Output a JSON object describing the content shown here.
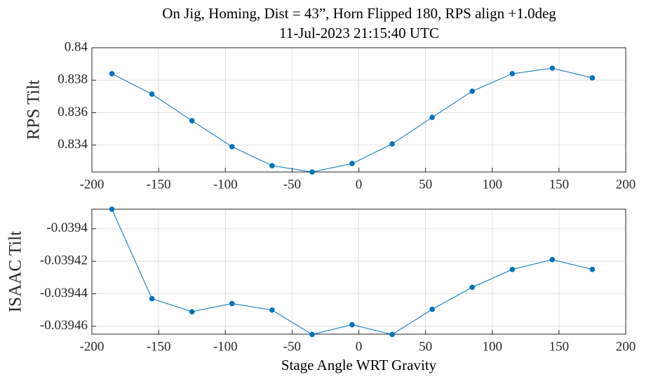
{
  "chart_data": [
    {
      "type": "line",
      "title": "On Jig, Homing, Dist = 43”, Horn Flipped 180, RPS align +1.0deg",
      "subtitle": "11-Jul-2023 21:15:40 UTC",
      "ylabel": "RPS Tilt",
      "x": [
        -185,
        -155,
        -125,
        -95,
        -65,
        -35,
        -5,
        25,
        55,
        85,
        115,
        145,
        175
      ],
      "series": [
        {
          "color": "#0072bd",
          "values": [
            0.8384,
            0.83714,
            0.8355,
            0.8339,
            0.83273,
            0.83234,
            0.83286,
            0.83407,
            0.83571,
            0.83732,
            0.8384,
            0.83874,
            0.83814
          ]
        }
      ],
      "xlim": [
        -200,
        200
      ],
      "xticks": [
        -200,
        -150,
        -100,
        -50,
        0,
        50,
        100,
        150,
        200
      ],
      "ylim": [
        0.83234,
        0.84
      ],
      "yticks": [
        0.834,
        0.836,
        0.838,
        0.84
      ],
      "grid": true
    },
    {
      "type": "line",
      "xlabel": "Stage Angle WRT Gravity",
      "ylabel": "ISAAC Tilt",
      "x": [
        -185,
        -155,
        -125,
        -95,
        -65,
        -35,
        -5,
        25,
        55,
        85,
        115,
        145,
        175
      ],
      "series": [
        {
          "color": "#0072bd",
          "values": [
            -0.039388,
            -0.039443,
            -0.039451,
            -0.039446,
            -0.03945,
            -0.039465,
            -0.039459,
            -0.039465,
            -0.0394495,
            -0.039436,
            -0.039425,
            -0.039419,
            -0.039425
          ]
        }
      ],
      "xlim": [
        -200,
        200
      ],
      "xticks": [
        -200,
        -150,
        -100,
        -50,
        0,
        50,
        100,
        150,
        200
      ],
      "ylim": [
        -0.0394648,
        -0.039388
      ],
      "yticks": [
        -0.03946,
        -0.03944,
        -0.03942,
        -0.0394
      ],
      "grid": true
    }
  ]
}
